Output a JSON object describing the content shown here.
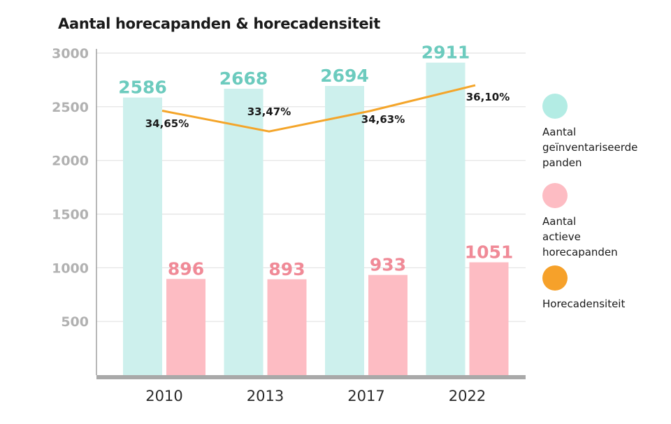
{
  "chart_data": {
    "type": "bar",
    "title": "Aantal horecapanden & horecadensiteit",
    "categories": [
      "2010",
      "2013",
      "2017",
      "2022"
    ],
    "ylim": [
      0,
      3000
    ],
    "yticks": [
      "500",
      "1000",
      "1500",
      "2000",
      "2500",
      "3000"
    ],
    "grid": true,
    "legend_position": "right",
    "series": [
      {
        "name": "Aantal geïnventariseerde panden",
        "type": "bar",
        "color": "#cdf0ed",
        "label_color": "#6ccbbe",
        "values": [
          2586,
          2668,
          2694,
          2911
        ],
        "labels": [
          "2586",
          "2668",
          "2694",
          "2911"
        ]
      },
      {
        "name": "Aantal actieve horecapanden",
        "type": "bar",
        "color": "#fdbcc3",
        "label_color": "#f08a97",
        "values": [
          896,
          893,
          933,
          1051
        ],
        "labels": [
          "896",
          "893",
          "933",
          "1051"
        ]
      },
      {
        "name": "Horecadensiteit",
        "type": "line",
        "color": "#f4a52a",
        "values": [
          34.65,
          33.47,
          34.63,
          36.1
        ],
        "labels": [
          "34,65%",
          "33,47%",
          "34,63%",
          "36,10%"
        ]
      }
    ]
  },
  "legend": [
    {
      "label": "Aantal\ngeïnventariseerde\npanden",
      "color": "#b3ece4"
    },
    {
      "label": "Aantal\nactieve\nhorecapanden",
      "color": "#fdbcc3"
    },
    {
      "label": "Horecadensiteit",
      "color": "#f6a12a"
    }
  ]
}
